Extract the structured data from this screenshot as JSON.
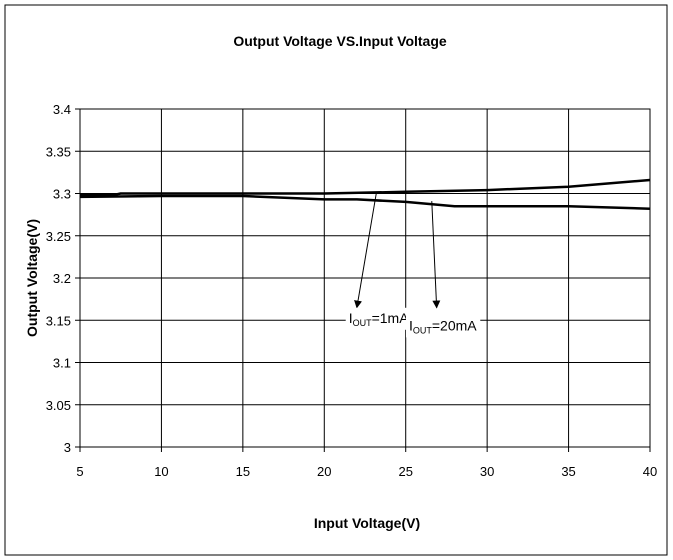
{
  "chart_data": {
    "type": "line",
    "title": "Output Voltage VS.Input Voltage",
    "xlabel": "Input Voltage(V)",
    "ylabel": "Output Voltage(V)",
    "xlim": [
      5,
      40
    ],
    "ylim": [
      3,
      3.4
    ],
    "x_ticks": [
      5,
      10,
      15,
      20,
      25,
      30,
      35,
      40
    ],
    "x_tick_labels": [
      "5",
      "10",
      "15",
      "20",
      "25",
      "30",
      "35",
      "40"
    ],
    "y_ticks": [
      3,
      3.05,
      3.1,
      3.15,
      3.2,
      3.25,
      3.3,
      3.35,
      3.4
    ],
    "y_tick_labels": [
      "3",
      "3.05",
      "3.1",
      "3.15",
      "3.2",
      "3.25",
      "3.3",
      "3.35",
      "3.4"
    ],
    "grid": true,
    "series": [
      {
        "x": [
          5,
          7,
          7.5,
          10,
          15,
          20,
          25,
          30,
          35,
          40
        ],
        "y": [
          3.298,
          3.298,
          3.3,
          3.3,
          3.3,
          3.3,
          3.302,
          3.304,
          3.308,
          3.316
        ]
      },
      {
        "x": [
          5,
          10,
          15,
          20,
          22,
          25,
          28,
          30,
          35,
          40
        ],
        "y": [
          3.296,
          3.297,
          3.297,
          3.293,
          3.293,
          3.29,
          3.285,
          3.285,
          3.285,
          3.282
        ]
      }
    ],
    "annotations": [
      {
        "prefix": "I",
        "sub": "OUT",
        "suffix": "=1mA",
        "x": 21.5,
        "y": 3.147,
        "arrow_from": [
          23.2,
          3.301
        ],
        "arrow_to": [
          22.0,
          3.165
        ]
      },
      {
        "prefix": "I",
        "sub": "OUT",
        "suffix": "=20mA",
        "x": 25.2,
        "y": 3.138,
        "arrow_from": [
          26.6,
          3.291
        ],
        "arrow_to": [
          26.9,
          3.165
        ]
      }
    ]
  }
}
